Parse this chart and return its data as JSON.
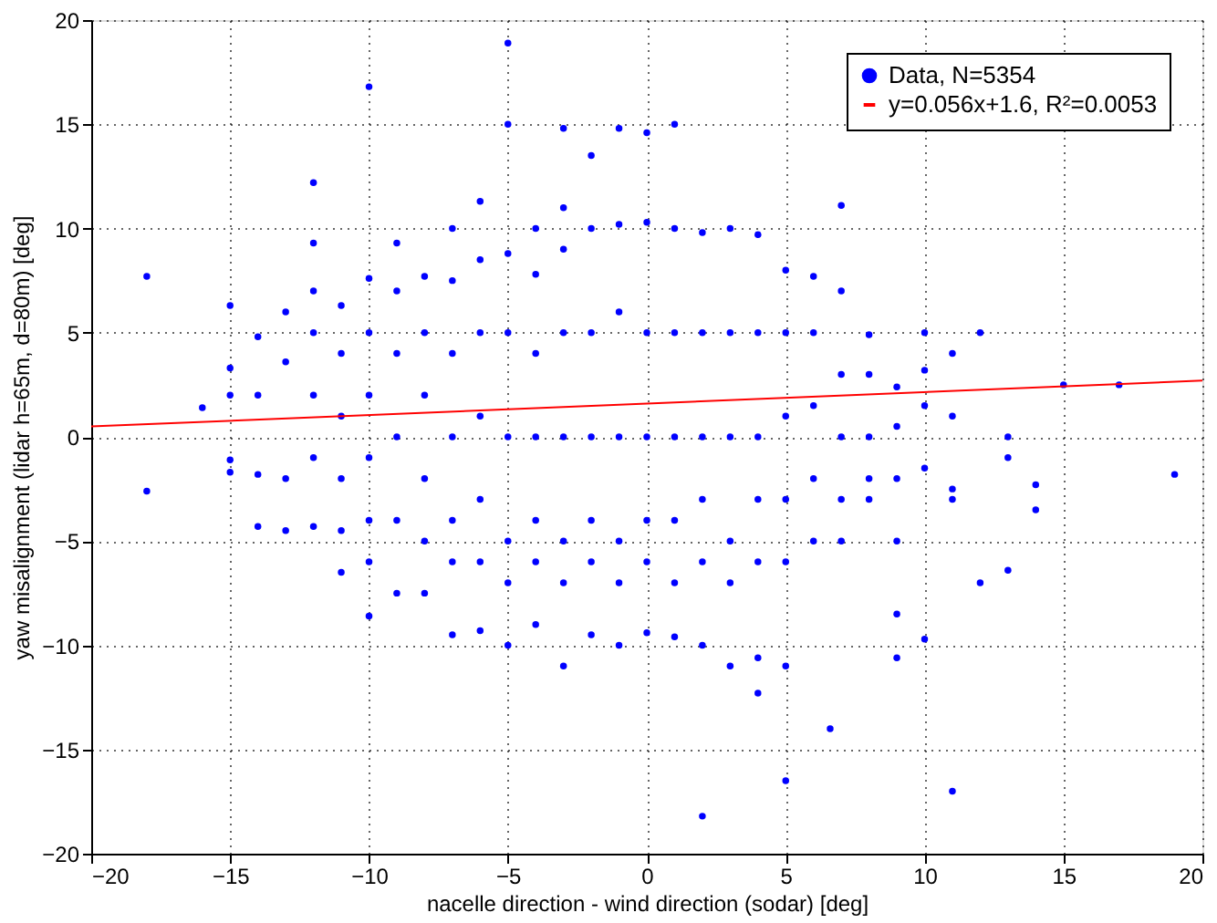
{
  "chart_data": {
    "type": "scatter",
    "xlabel": "nacelle direction - wind direction (sodar) [deg]",
    "ylabel": "yaw misalignment (lidar h=65m, d=80m) [deg]",
    "xlim": [
      -20,
      20
    ],
    "ylim": [
      -20,
      20
    ],
    "xticks": [
      -20,
      -15,
      -10,
      -5,
      0,
      5,
      10,
      15,
      20
    ],
    "yticks": [
      -20,
      -15,
      -10,
      -5,
      0,
      5,
      10,
      15,
      20
    ],
    "grid": true,
    "legend": "top right",
    "series": [
      {
        "name": "Data, N=5354",
        "color": "#0000ff",
        "marker": "circle",
        "x": [
          -18,
          -18,
          -16,
          -15,
          -15,
          -15,
          -15,
          -15,
          -14,
          -14,
          -14,
          -14,
          -13,
          -13,
          -13,
          -13,
          -12,
          -12,
          -12,
          -12,
          -12,
          -12,
          -12,
          -11,
          -11,
          -11,
          -11,
          -11,
          -11,
          -10,
          -10,
          -10,
          -10,
          -10,
          -10,
          -10,
          -10,
          -9,
          -9,
          -9,
          -9,
          -9,
          -9,
          -8,
          -8,
          -8,
          -8,
          -8,
          -8,
          -7,
          -7,
          -7,
          -7,
          -7,
          -7,
          -7,
          -6,
          -6,
          -6,
          -6,
          -6,
          -6,
          -6,
          -5,
          -5,
          -5,
          -5,
          -5,
          -5,
          -5,
          -5,
          -4,
          -4,
          -4,
          -4,
          -4,
          -4,
          -4,
          -3,
          -3,
          -3,
          -3,
          -3,
          -3,
          -3,
          -3,
          -2,
          -2,
          -2,
          -2,
          -2,
          -2,
          -2,
          -1,
          -1,
          -1,
          -1,
          -1,
          -1,
          -1,
          0,
          0,
          0,
          0,
          0,
          0,
          0,
          1,
          1,
          1,
          1,
          1,
          1,
          1,
          2,
          2,
          2,
          2,
          2,
          2,
          2,
          3,
          3,
          3,
          3,
          3,
          3,
          4,
          4,
          4,
          4,
          4,
          4,
          4,
          5,
          5,
          5,
          5,
          5,
          5,
          5,
          6,
          6,
          6,
          6,
          6,
          6.6,
          7,
          7,
          7,
          7,
          7,
          7,
          8,
          8,
          8,
          8,
          8,
          9,
          9,
          9,
          9,
          9,
          9,
          10,
          10,
          10,
          10,
          10,
          11,
          11,
          11,
          11,
          11,
          12,
          12,
          13,
          13,
          13,
          14,
          14,
          15,
          17,
          19
        ],
        "values": [
          7.7,
          -2.6,
          1.4,
          6.3,
          3.3,
          2.0,
          -1.1,
          -1.7,
          4.8,
          2.0,
          -1.8,
          -4.3,
          6.0,
          3.6,
          -2.0,
          -4.5,
          12.2,
          9.3,
          7.0,
          5.0,
          2.0,
          -1.0,
          -4.3,
          6.3,
          4.0,
          1.0,
          -2.0,
          -4.5,
          -6.5,
          16.8,
          7.6,
          5.0,
          2.0,
          -1.0,
          -4.0,
          -6.0,
          -8.6,
          9.3,
          7.0,
          4.0,
          0,
          -4.0,
          -7.5,
          7.7,
          5.0,
          2.0,
          -2.0,
          -5.0,
          -7.5,
          10.0,
          7.5,
          4.0,
          0,
          -4.0,
          -6.0,
          -9.5,
          11.3,
          8.5,
          5.0,
          1.0,
          -3.0,
          -6.0,
          -9.3,
          18.9,
          15.0,
          8.8,
          5.0,
          0,
          -5.0,
          -7.0,
          -10.0,
          10.0,
          7.8,
          4.0,
          0,
          -4.0,
          -6.0,
          -9.0,
          14.8,
          11.0,
          9.0,
          5.0,
          0,
          -5.0,
          -7.0,
          -11.0,
          13.5,
          10.0,
          5.0,
          0,
          -4.0,
          -6.0,
          -9.5,
          14.8,
          10.2,
          6.0,
          0,
          -5.0,
          -7.0,
          -10.0,
          14.6,
          10.3,
          5.0,
          0,
          -4.0,
          -6.0,
          -9.4,
          15.0,
          10.0,
          5.0,
          0,
          -4.0,
          -7.0,
          -9.6,
          9.8,
          5.0,
          0,
          -3.0,
          -6.0,
          -10.0,
          -18.2,
          10.0,
          5.0,
          0,
          -5.0,
          -7.0,
          -11.0,
          9.7,
          5.0,
          0,
          -3.0,
          -6.0,
          -10.6,
          -12.3,
          8.0,
          5.0,
          1.0,
          -3.0,
          -6.0,
          -11.0,
          -16.5,
          7.7,
          5.0,
          1.5,
          -2.0,
          -5.0,
          -14.0,
          11.1,
          7.0,
          3.0,
          0,
          -3.0,
          -5.0,
          4.9,
          3.0,
          0,
          -2.0,
          -3.0,
          2.4,
          0.5,
          -2.0,
          -5.0,
          -8.5,
          -10.6,
          5.0,
          3.2,
          1.5,
          -1.5,
          -9.7,
          4.0,
          1.0,
          -2.5,
          -3.0,
          -17.0,
          5.0,
          -7.0,
          0.0,
          -1.0,
          -6.4,
          -2.3,
          -3.5,
          2.5,
          2.5,
          -1.8
        ]
      },
      {
        "name": "y=0.056x+1.6, R²=0.0053",
        "color": "#ff0000",
        "type": "line",
        "x": [
          -20,
          20
        ],
        "values": [
          0.5,
          2.7
        ]
      }
    ]
  }
}
